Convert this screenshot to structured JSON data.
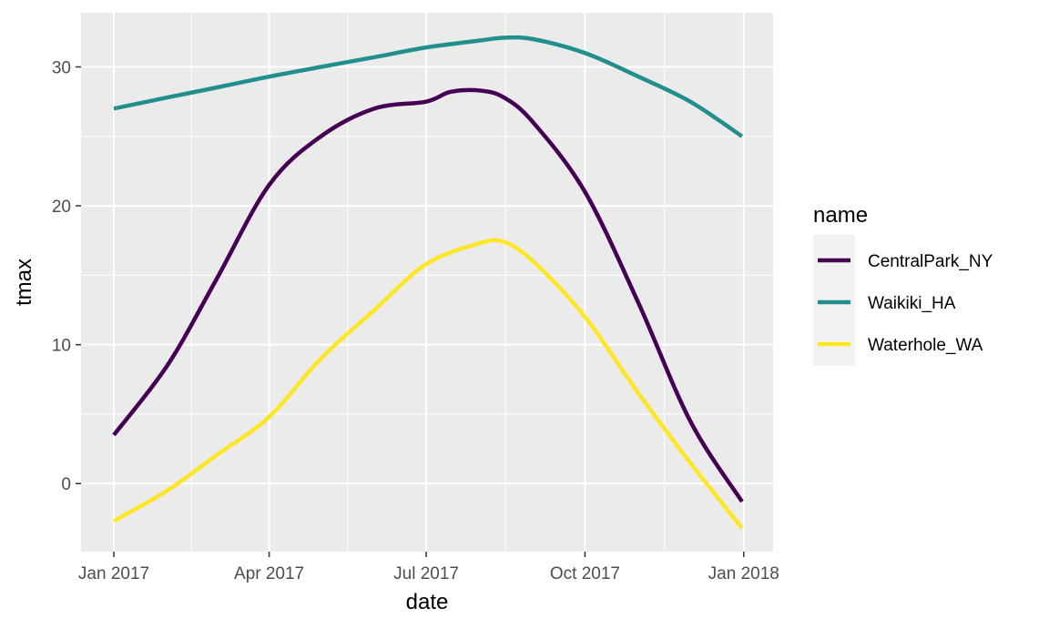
{
  "chart_data": {
    "type": "line",
    "xlabel": "date",
    "ylabel": "tmax",
    "x_ticks": [
      "Jan 2017",
      "Apr 2017",
      "Jul 2017",
      "Oct 2017",
      "Jan 2018"
    ],
    "x_tick_dates": [
      "2017-01-01",
      "2017-04-01",
      "2017-07-01",
      "2017-10-01",
      "2018-01-01"
    ],
    "x_range": [
      "2016-12-13",
      "2018-01-18"
    ],
    "y_ticks": [
      0,
      10,
      20,
      30
    ],
    "ylim": [
      -4.9,
      33.9
    ],
    "grid": true,
    "legend": {
      "title": "name",
      "position": "right"
    },
    "series": [
      {
        "name": "CentralPark_NY",
        "color": "#440154",
        "x": [
          "2017-01-01",
          "2017-02-01",
          "2017-03-01",
          "2017-04-01",
          "2017-05-01",
          "2017-06-01",
          "2017-07-01",
          "2017-07-15",
          "2017-08-01",
          "2017-08-15",
          "2017-09-01",
          "2017-10-01",
          "2017-11-01",
          "2017-12-01",
          "2017-12-31"
        ],
        "y": [
          3.5,
          8.5,
          14.6,
          21.5,
          25.0,
          27.0,
          27.5,
          28.2,
          28.3,
          27.8,
          26.0,
          21.0,
          13.0,
          4.5,
          -1.3
        ]
      },
      {
        "name": "Waikiki_HA",
        "color": "#21908C",
        "x": [
          "2017-01-01",
          "2017-02-01",
          "2017-03-01",
          "2017-04-01",
          "2017-05-01",
          "2017-06-01",
          "2017-07-01",
          "2017-08-01",
          "2017-08-15",
          "2017-09-01",
          "2017-10-01",
          "2017-11-01",
          "2017-12-01",
          "2017-12-31"
        ],
        "y": [
          27.0,
          27.8,
          28.5,
          29.3,
          30.0,
          30.7,
          31.4,
          31.9,
          32.1,
          32.0,
          31.0,
          29.3,
          27.5,
          25.0
        ]
      },
      {
        "name": "Waterhole_WA",
        "color": "#FDE725",
        "x": [
          "2017-01-01",
          "2017-02-01",
          "2017-03-01",
          "2017-04-01",
          "2017-05-01",
          "2017-06-01",
          "2017-07-01",
          "2017-08-01",
          "2017-08-15",
          "2017-09-01",
          "2017-10-01",
          "2017-11-01",
          "2017-12-01",
          "2017-12-31"
        ],
        "y": [
          -2.7,
          -0.5,
          2.0,
          4.8,
          9.0,
          12.5,
          15.8,
          17.3,
          17.4,
          16.0,
          12.0,
          6.5,
          1.5,
          -3.2
        ]
      }
    ]
  }
}
